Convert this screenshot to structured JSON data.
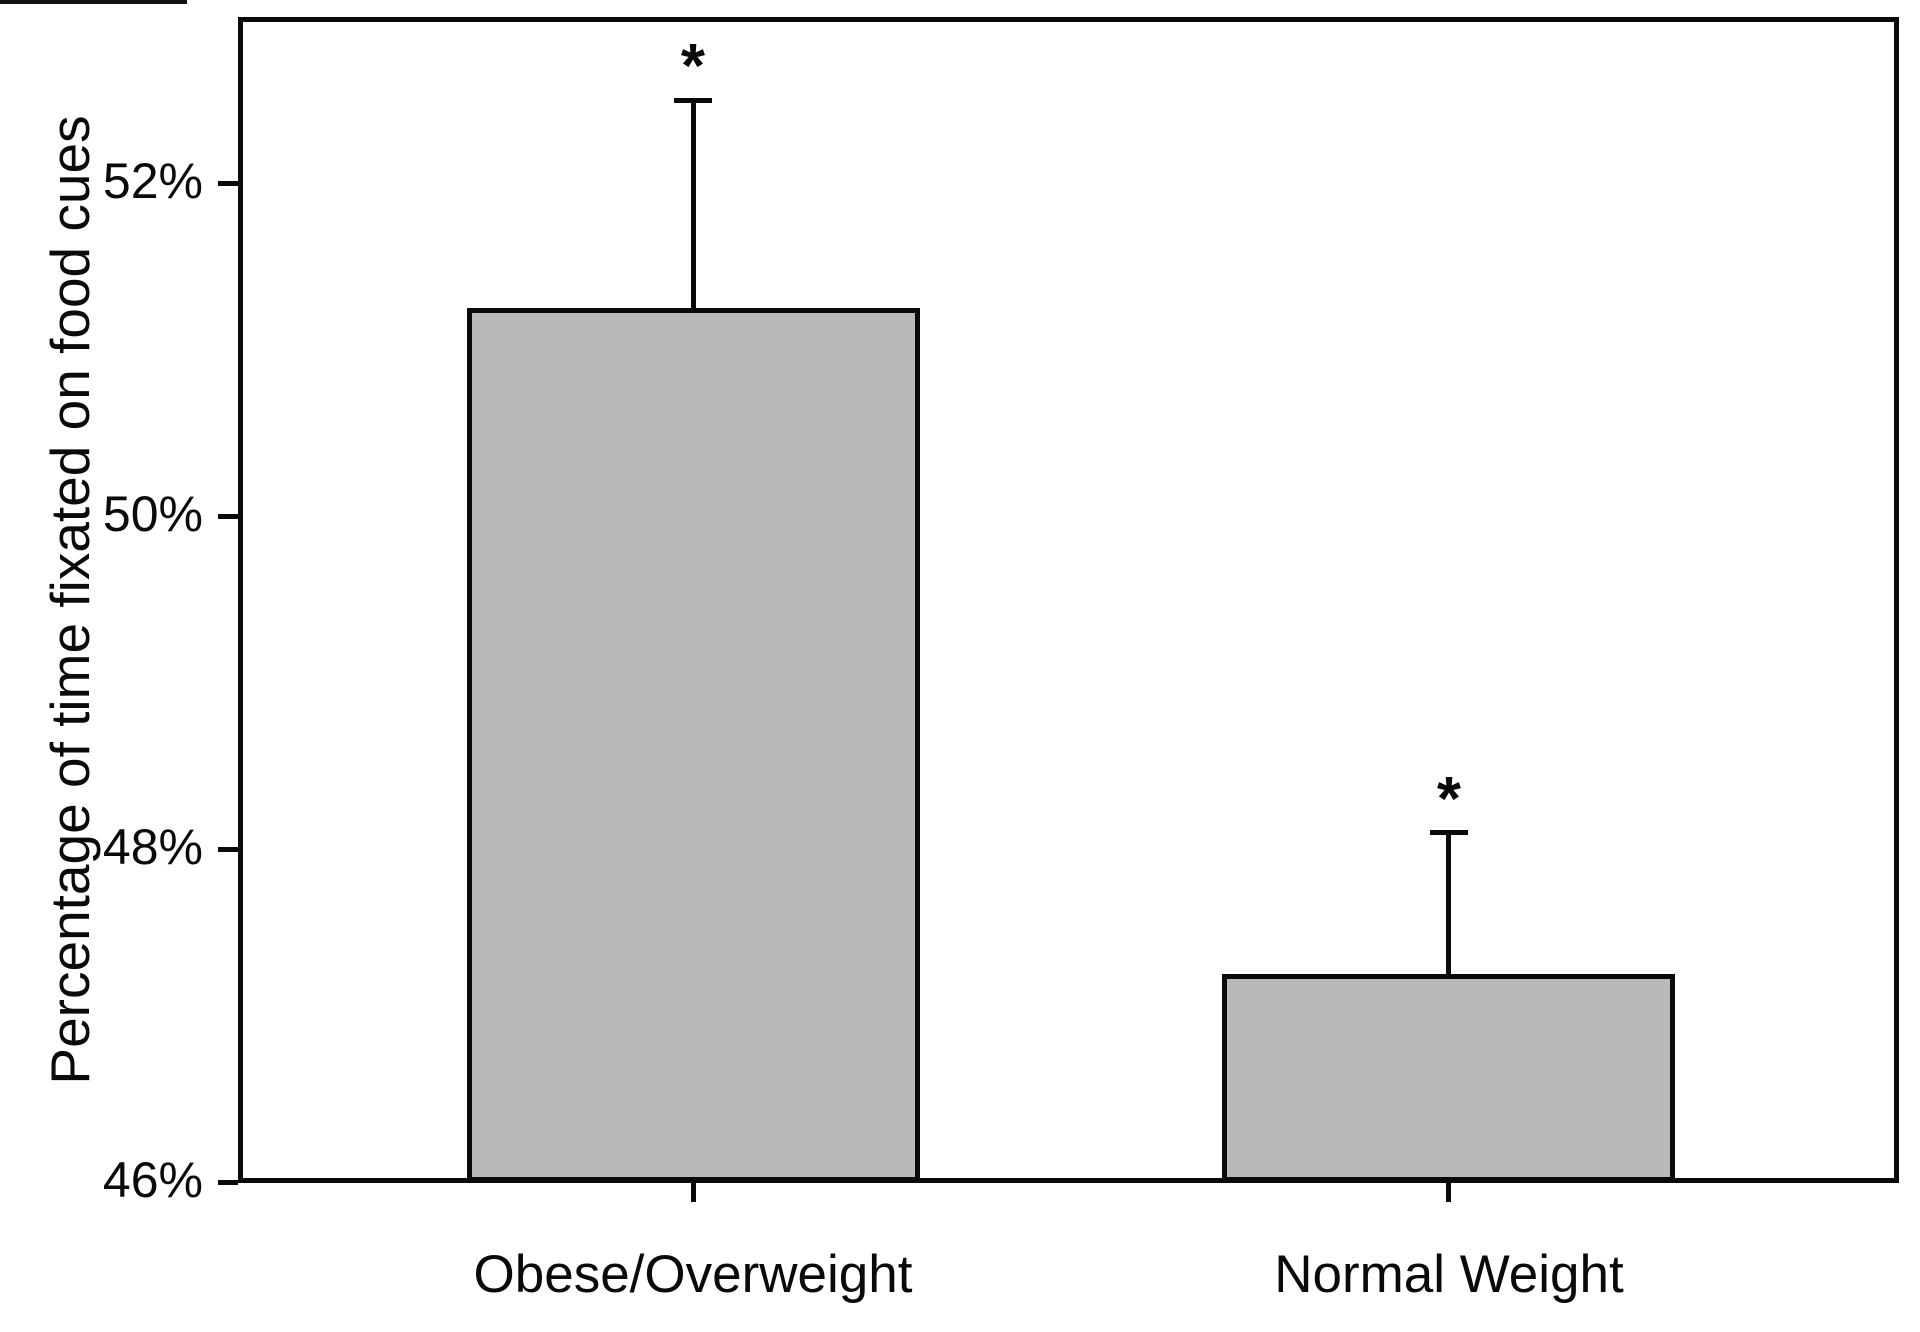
{
  "chart_data": {
    "type": "bar",
    "title": "",
    "xlabel": "",
    "ylabel": "Percentage of time fixated on food cues",
    "categories": [
      "Obese/Overweight",
      "Normal Weight"
    ],
    "values": [
      51.25,
      47.25
    ],
    "error_upper": [
      52.5,
      48.1
    ],
    "significance_markers": [
      "*",
      "*"
    ],
    "ylim": [
      46,
      53
    ],
    "yticks": [
      46,
      48,
      50,
      52
    ],
    "ytick_labels": [
      "46%",
      "48%",
      "50%",
      "52%"
    ],
    "grid": false,
    "legend": "none",
    "bar_fill_color": "#b9b9b9",
    "bar_border_color": "#0a0a0a",
    "axis_color": "#0a0a0a",
    "background_color": "#ffffff"
  }
}
